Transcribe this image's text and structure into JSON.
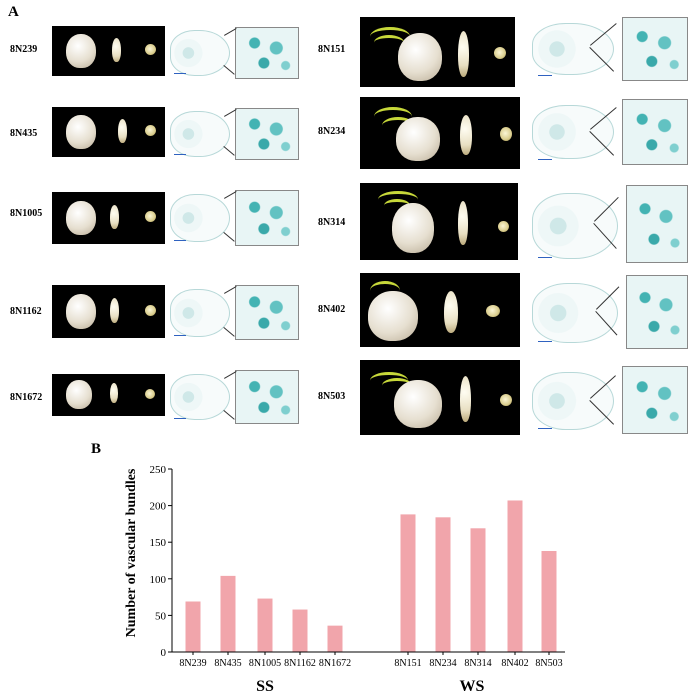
{
  "panel_a_label": "A",
  "panel_b_label": "B",
  "ss_samples": [
    "8N239",
    "8N435",
    "8N1005",
    "8N1162",
    "8N1672"
  ],
  "ws_samples": [
    "8N151",
    "8N234",
    "8N314",
    "8N402",
    "8N503"
  ],
  "group_labels": {
    "ss": "SS",
    "ws": "WS"
  },
  "chart_data": {
    "type": "bar",
    "ylabel": "Number of vascular bundles",
    "xlabel": "",
    "ylim": [
      0,
      250
    ],
    "yticks": [
      0,
      50,
      100,
      150,
      200,
      250
    ],
    "bar_color": "#f1a5ab",
    "categories": [
      "8N239",
      "8N435",
      "8N1005",
      "8N1162",
      "8N1672",
      "8N151",
      "8N234",
      "8N314",
      "8N402",
      "8N503"
    ],
    "groups": [
      {
        "name": "SS",
        "categories": [
          "8N239",
          "8N435",
          "8N1005",
          "8N1162",
          "8N1672"
        ]
      },
      {
        "name": "WS",
        "categories": [
          "8N151",
          "8N234",
          "8N314",
          "8N402",
          "8N503"
        ]
      }
    ],
    "values": [
      69,
      104,
      73,
      58,
      36,
      188,
      184,
      169,
      207,
      138
    ]
  }
}
